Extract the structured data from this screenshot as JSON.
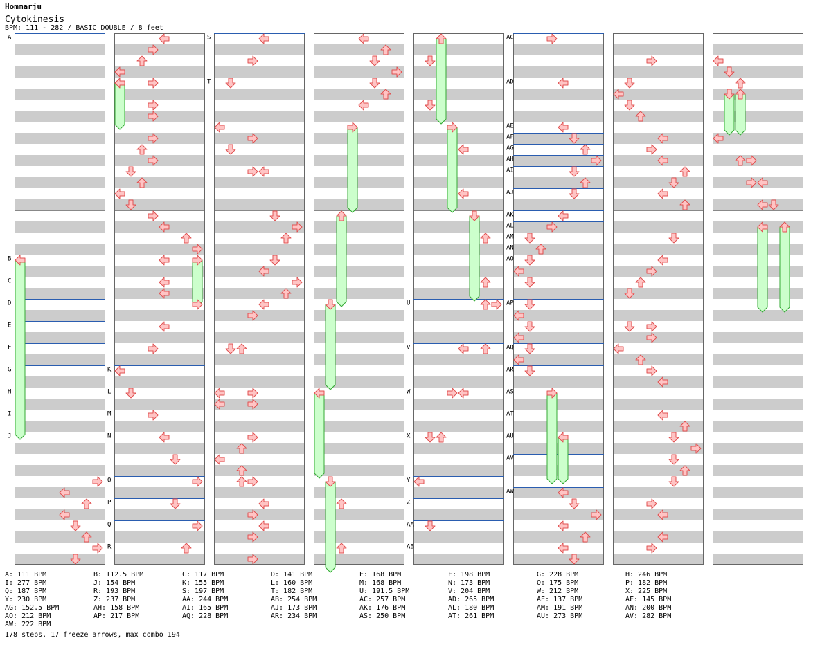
{
  "header": {
    "artist": "Hommarju",
    "title": "Cytokinesis",
    "meta": "BPM: 111 - 282 / BASIC DOUBLE / 8 feet"
  },
  "colors": {
    "stripe": "#cccccc",
    "column_border": "#666666",
    "bpm_line": "#2a5db0",
    "arrow_fill": "#ffc4c4",
    "arrow_stroke": "#e05050",
    "freeze_fill": "#ccffcc",
    "freeze_stroke": "#33aa33"
  },
  "icons": {
    "arrow": "dance-arrow-icon",
    "freeze": "freeze-arrow-icon"
  },
  "chart_data": {
    "type": "table",
    "description_units": "column index 0-7, beat position 0-48 within column, lane 0-7 (L,D,U,R,L,D,U,R)",
    "bpm_markers": [
      {
        "label": "A",
        "col": 0,
        "pos": 0
      },
      {
        "label": "B",
        "col": 0,
        "pos": 20
      },
      {
        "label": "C",
        "col": 0,
        "pos": 22
      },
      {
        "label": "D",
        "col": 0,
        "pos": 24
      },
      {
        "label": "E",
        "col": 0,
        "pos": 26
      },
      {
        "label": "F",
        "col": 0,
        "pos": 28
      },
      {
        "label": "G",
        "col": 0,
        "pos": 30
      },
      {
        "label": "H",
        "col": 0,
        "pos": 32
      },
      {
        "label": "I",
        "col": 0,
        "pos": 34
      },
      {
        "label": "J",
        "col": 0,
        "pos": 36
      },
      {
        "label": "K",
        "col": 1,
        "pos": 30
      },
      {
        "label": "L",
        "col": 1,
        "pos": 32
      },
      {
        "label": "M",
        "col": 1,
        "pos": 34
      },
      {
        "label": "N",
        "col": 1,
        "pos": 36
      },
      {
        "label": "O",
        "col": 1,
        "pos": 40
      },
      {
        "label": "P",
        "col": 1,
        "pos": 42
      },
      {
        "label": "Q",
        "col": 1,
        "pos": 44
      },
      {
        "label": "R",
        "col": 1,
        "pos": 46
      },
      {
        "label": "S",
        "col": 2,
        "pos": 0
      },
      {
        "label": "T",
        "col": 2,
        "pos": 4
      },
      {
        "label": "U",
        "col": 4,
        "pos": 24
      },
      {
        "label": "V",
        "col": 4,
        "pos": 28
      },
      {
        "label": "W",
        "col": 4,
        "pos": 32
      },
      {
        "label": "X",
        "col": 4,
        "pos": 36
      },
      {
        "label": "Y",
        "col": 4,
        "pos": 40
      },
      {
        "label": "Z",
        "col": 4,
        "pos": 42
      },
      {
        "label": "AA",
        "col": 4,
        "pos": 44
      },
      {
        "label": "AB",
        "col": 4,
        "pos": 46
      },
      {
        "label": "AC",
        "col": 5,
        "pos": 0
      },
      {
        "label": "AD",
        "col": 5,
        "pos": 4
      },
      {
        "label": "AE",
        "col": 5,
        "pos": 8
      },
      {
        "label": "AF",
        "col": 5,
        "pos": 9
      },
      {
        "label": "AG",
        "col": 5,
        "pos": 10
      },
      {
        "label": "AH",
        "col": 5,
        "pos": 11
      },
      {
        "label": "AI",
        "col": 5,
        "pos": 12
      },
      {
        "label": "AJ",
        "col": 5,
        "pos": 14
      },
      {
        "label": "AK",
        "col": 5,
        "pos": 16
      },
      {
        "label": "AL",
        "col": 5,
        "pos": 17
      },
      {
        "label": "AM",
        "col": 5,
        "pos": 18
      },
      {
        "label": "AN",
        "col": 5,
        "pos": 19
      },
      {
        "label": "AO",
        "col": 5,
        "pos": 20
      },
      {
        "label": "AP",
        "col": 5,
        "pos": 24
      },
      {
        "label": "AQ",
        "col": 5,
        "pos": 28
      },
      {
        "label": "AR",
        "col": 5,
        "pos": 30
      },
      {
        "label": "AS",
        "col": 5,
        "pos": 32
      },
      {
        "label": "AT",
        "col": 5,
        "pos": 34
      },
      {
        "label": "AU",
        "col": 5,
        "pos": 36
      },
      {
        "label": "AV",
        "col": 5,
        "pos": 38
      },
      {
        "label": "AW",
        "col": 5,
        "pos": 41
      }
    ],
    "freezes": [
      {
        "col": 0,
        "lane": 0,
        "start": 20,
        "end": 36
      },
      {
        "col": 1,
        "lane": 0,
        "start": 4,
        "end": 8
      },
      {
        "col": 1,
        "lane": 7,
        "start": 20,
        "end": 24
      },
      {
        "col": 3,
        "lane": 3,
        "start": 8,
        "end": 15.5
      },
      {
        "col": 3,
        "lane": 2,
        "start": 16,
        "end": 24
      },
      {
        "col": 3,
        "lane": 1,
        "start": 24,
        "end": 31.5
      },
      {
        "col": 3,
        "lane": 0,
        "start": 32,
        "end": 39.5
      },
      {
        "col": 3,
        "lane": 1,
        "start": 40,
        "end": 48
      },
      {
        "col": 4,
        "lane": 2,
        "start": 0,
        "end": 7.5
      },
      {
        "col": 4,
        "lane": 3,
        "start": 8,
        "end": 15.5
      },
      {
        "col": 4,
        "lane": 5,
        "start": 16,
        "end": 23.5
      },
      {
        "col": 5,
        "lane": 3,
        "start": 32,
        "end": 40
      },
      {
        "col": 5,
        "lane": 4,
        "start": 36,
        "end": 40
      },
      {
        "col": 7,
        "lane": 1,
        "start": 5,
        "end": 8.5
      },
      {
        "col": 7,
        "lane": 2,
        "start": 5,
        "end": 8.5
      },
      {
        "col": 7,
        "lane": 4,
        "start": 17,
        "end": 24.5
      },
      {
        "col": 7,
        "lane": 6,
        "start": 17,
        "end": 24.5
      }
    ],
    "arrows": [
      [
        0,
        7,
        40
      ],
      [
        0,
        4,
        41
      ],
      [
        0,
        6,
        42
      ],
      [
        0,
        4,
        43
      ],
      [
        0,
        5,
        44
      ],
      [
        0,
        6,
        45
      ],
      [
        0,
        7,
        46
      ],
      [
        0,
        5,
        47
      ],
      [
        1,
        4,
        0
      ],
      [
        1,
        3,
        1
      ],
      [
        1,
        2,
        2
      ],
      [
        1,
        0,
        3
      ],
      [
        1,
        3,
        4
      ],
      [
        1,
        3,
        6
      ],
      [
        1,
        3,
        7
      ],
      [
        1,
        3,
        9
      ],
      [
        1,
        2,
        10
      ],
      [
        1,
        3,
        11
      ],
      [
        1,
        1,
        12
      ],
      [
        1,
        2,
        13
      ],
      [
        1,
        0,
        14
      ],
      [
        1,
        1,
        15
      ],
      [
        1,
        3,
        16
      ],
      [
        1,
        4,
        17
      ],
      [
        1,
        6,
        18
      ],
      [
        1,
        7,
        19
      ],
      [
        1,
        4,
        20
      ],
      [
        1,
        4,
        22
      ],
      [
        1,
        4,
        23
      ],
      [
        1,
        7,
        24
      ],
      [
        1,
        4,
        26
      ],
      [
        1,
        3,
        28
      ],
      [
        1,
        0,
        30
      ],
      [
        1,
        1,
        32
      ],
      [
        1,
        3,
        34
      ],
      [
        1,
        4,
        36
      ],
      [
        1,
        5,
        38
      ],
      [
        1,
        7,
        40
      ],
      [
        1,
        5,
        42
      ],
      [
        1,
        7,
        44
      ],
      [
        1,
        6,
        46
      ],
      [
        2,
        4,
        0
      ],
      [
        2,
        3,
        2
      ],
      [
        2,
        1,
        4
      ],
      [
        2,
        0,
        8
      ],
      [
        2,
        3,
        9
      ],
      [
        2,
        1,
        10
      ],
      [
        2,
        3,
        12
      ],
      [
        2,
        4,
        12
      ],
      [
        2,
        5,
        16
      ],
      [
        2,
        7,
        17
      ],
      [
        2,
        6,
        18
      ],
      [
        2,
        5,
        20
      ],
      [
        2,
        4,
        21
      ],
      [
        2,
        7,
        22
      ],
      [
        2,
        6,
        23
      ],
      [
        2,
        4,
        24
      ],
      [
        2,
        3,
        25
      ],
      [
        2,
        1,
        28
      ],
      [
        2,
        2,
        28
      ],
      [
        2,
        0,
        32
      ],
      [
        2,
        3,
        32
      ],
      [
        2,
        0,
        33
      ],
      [
        2,
        3,
        33
      ],
      [
        2,
        3,
        36
      ],
      [
        2,
        2,
        37
      ],
      [
        2,
        0,
        38
      ],
      [
        2,
        2,
        39
      ],
      [
        2,
        2,
        40
      ],
      [
        2,
        3,
        40
      ],
      [
        2,
        4,
        42
      ],
      [
        2,
        3,
        43
      ],
      [
        2,
        4,
        44
      ],
      [
        2,
        3,
        45
      ],
      [
        2,
        3,
        47
      ],
      [
        3,
        4,
        0
      ],
      [
        3,
        6,
        1
      ],
      [
        3,
        5,
        2
      ],
      [
        3,
        7,
        3
      ],
      [
        3,
        5,
        4
      ],
      [
        3,
        6,
        5
      ],
      [
        3,
        4,
        6
      ],
      [
        3,
        2,
        42
      ],
      [
        3,
        2,
        46
      ],
      [
        4,
        1,
        2
      ],
      [
        4,
        1,
        6
      ],
      [
        4,
        4,
        10
      ],
      [
        4,
        4,
        14
      ],
      [
        4,
        6,
        18
      ],
      [
        4,
        6,
        22
      ],
      [
        4,
        6,
        24
      ],
      [
        4,
        7,
        24
      ],
      [
        4,
        4,
        28
      ],
      [
        4,
        6,
        28
      ],
      [
        4,
        3,
        32
      ],
      [
        4,
        4,
        32
      ],
      [
        4,
        1,
        36
      ],
      [
        4,
        2,
        36
      ],
      [
        4,
        0,
        40
      ],
      [
        4,
        1,
        44
      ],
      [
        5,
        3,
        0
      ],
      [
        5,
        4,
        4
      ],
      [
        5,
        4,
        8
      ],
      [
        5,
        5,
        9
      ],
      [
        5,
        6,
        10
      ],
      [
        5,
        7,
        11
      ],
      [
        5,
        5,
        12
      ],
      [
        5,
        6,
        13
      ],
      [
        5,
        5,
        14
      ],
      [
        5,
        4,
        16
      ],
      [
        5,
        3,
        17
      ],
      [
        5,
        1,
        18
      ],
      [
        5,
        2,
        19
      ],
      [
        5,
        1,
        20
      ],
      [
        5,
        0,
        21
      ],
      [
        5,
        1,
        22
      ],
      [
        5,
        1,
        24
      ],
      [
        5,
        0,
        25
      ],
      [
        5,
        1,
        26
      ],
      [
        5,
        0,
        27
      ],
      [
        5,
        1,
        28
      ],
      [
        5,
        0,
        29
      ],
      [
        5,
        1,
        30
      ],
      [
        5,
        4,
        41
      ],
      [
        5,
        5,
        42
      ],
      [
        5,
        7,
        43
      ],
      [
        5,
        4,
        44
      ],
      [
        5,
        6,
        45
      ],
      [
        5,
        4,
        46
      ],
      [
        5,
        5,
        47
      ],
      [
        6,
        3,
        2
      ],
      [
        6,
        1,
        4
      ],
      [
        6,
        0,
        5
      ],
      [
        6,
        1,
        6
      ],
      [
        6,
        2,
        7
      ],
      [
        6,
        4,
        9
      ],
      [
        6,
        3,
        10
      ],
      [
        6,
        4,
        11
      ],
      [
        6,
        6,
        12
      ],
      [
        6,
        5,
        13
      ],
      [
        6,
        4,
        14
      ],
      [
        6,
        6,
        15
      ],
      [
        6,
        5,
        18
      ],
      [
        6,
        4,
        20
      ],
      [
        6,
        3,
        21
      ],
      [
        6,
        2,
        22
      ],
      [
        6,
        1,
        23
      ],
      [
        6,
        1,
        26
      ],
      [
        6,
        3,
        26
      ],
      [
        6,
        3,
        27
      ],
      [
        6,
        0,
        28
      ],
      [
        6,
        2,
        29
      ],
      [
        6,
        3,
        30
      ],
      [
        6,
        4,
        31
      ],
      [
        6,
        4,
        34
      ],
      [
        6,
        6,
        35
      ],
      [
        6,
        5,
        36
      ],
      [
        6,
        7,
        37
      ],
      [
        6,
        5,
        38
      ],
      [
        6,
        6,
        39
      ],
      [
        6,
        5,
        40
      ],
      [
        6,
        3,
        42
      ],
      [
        6,
        4,
        43
      ],
      [
        6,
        4,
        45
      ],
      [
        6,
        3,
        46
      ],
      [
        7,
        0,
        2
      ],
      [
        7,
        1,
        3
      ],
      [
        7,
        2,
        4
      ],
      [
        7,
        0,
        9
      ],
      [
        7,
        2,
        11
      ],
      [
        7,
        3,
        11
      ],
      [
        7,
        3,
        13
      ],
      [
        7,
        4,
        13
      ],
      [
        7,
        4,
        15
      ],
      [
        7,
        5,
        15
      ]
    ],
    "legend": [
      "A: 111 BPM",
      "B: 112.5 BPM",
      "C: 117 BPM",
      "D: 141 BPM",
      "E: 168 BPM",
      "F: 198 BPM",
      "G: 228 BPM",
      "H: 246 BPM",
      "I: 277 BPM",
      "J: 154 BPM",
      "K: 155 BPM",
      "L: 160 BPM",
      "M: 168 BPM",
      "N: 173 BPM",
      "O: 175 BPM",
      "P: 182 BPM",
      "Q: 187 BPM",
      "R: 193 BPM",
      "S: 197 BPM",
      "T: 182 BPM",
      "U: 191.5 BPM",
      "V: 204 BPM",
      "W: 212 BPM",
      "X: 225 BPM",
      "Y: 230 BPM",
      "Z: 237 BPM",
      "AA: 244 BPM",
      "AB: 254 BPM",
      "AC: 257 BPM",
      "AD: 265 BPM",
      "AE: 137 BPM",
      "AF: 145 BPM",
      "AG: 152.5 BPM",
      "AH: 158 BPM",
      "AI: 165 BPM",
      "AJ: 173 BPM",
      "AK: 176 BPM",
      "AL: 180 BPM",
      "AM: 191 BPM",
      "AN: 200 BPM",
      "AO: 212 BPM",
      "AP: 217 BPM",
      "AQ: 228 BPM",
      "AR: 234 BPM",
      "AS: 250 BPM",
      "AT: 261 BPM",
      "AU: 273 BPM",
      "AV: 282 BPM",
      "AW: 222 BPM"
    ],
    "summary": "178 steps, 17 freeze arrows, max combo 194"
  }
}
